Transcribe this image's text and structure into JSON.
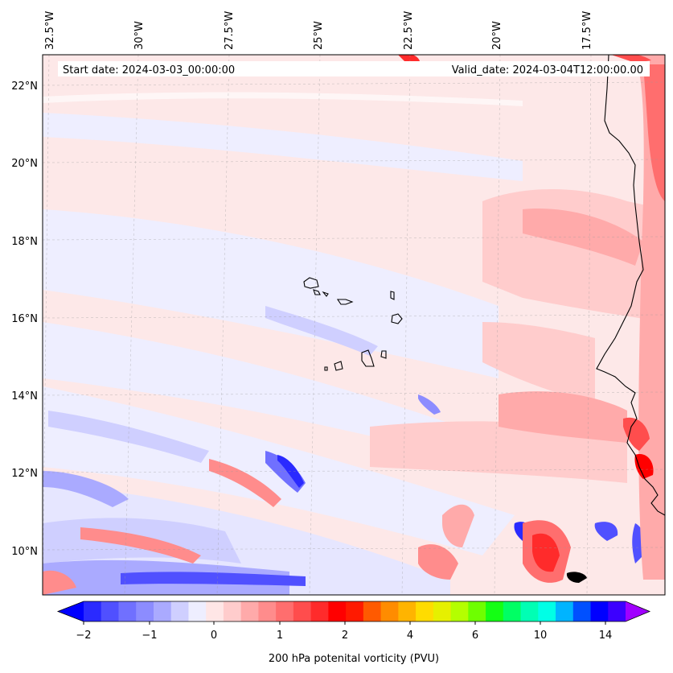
{
  "map": {
    "start_label": "Start date: 2024-03-03_00:00:00",
    "valid_label": "Valid_date: 2024-03-04T12:00:00.00",
    "lon_labels": [
      "32.5°W",
      "30°W",
      "27.5°W",
      "25°W",
      "22.5°W",
      "20°W",
      "17.5°W"
    ],
    "lat_labels": [
      "22°N",
      "20°N",
      "18°N",
      "16°N",
      "14°N",
      "12°N",
      "10°N"
    ],
    "colorbar": {
      "label": "200 hPa potenital vorticity (PVU)",
      "ticks": [
        "−2",
        "−1",
        "0",
        "1",
        "2",
        "4",
        "6",
        "10",
        "14"
      ],
      "colors": [
        "#0000ff",
        "#2a2aff",
        "#5050ff",
        "#7070ff",
        "#8c8cff",
        "#aaaaff",
        "#cfcfff",
        "#eeeeff",
        "#ffe6e6",
        "#ffcccc",
        "#ffaaaa",
        "#ff8c8c",
        "#ff6e6e",
        "#ff4d4d",
        "#ff2b2b",
        "#ff0000",
        "#ff1a00",
        "#ff5a00",
        "#ff8c00",
        "#ffb400",
        "#ffdc00",
        "#e6f000",
        "#b4ff00",
        "#6eff00",
        "#14ff14",
        "#00ff64",
        "#00ffb4",
        "#00ffe6",
        "#00b4ff",
        "#0050ff",
        "#0000ff",
        "#3c00ff",
        "#a000ff"
      ]
    }
  }
}
